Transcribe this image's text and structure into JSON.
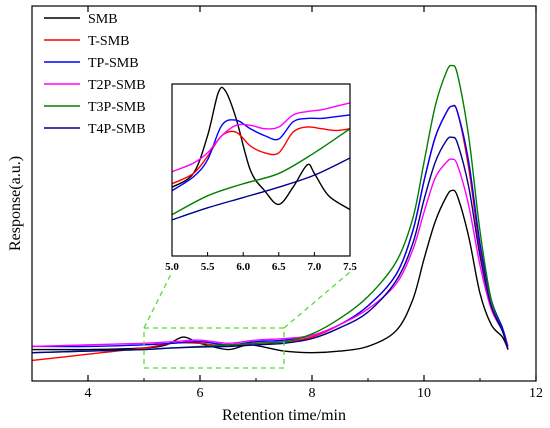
{
  "chart_data": {
    "type": "line",
    "title": "",
    "xlabel": "Retention time/min",
    "ylabel": "Response(a.u.)",
    "xlim": [
      3,
      12
    ],
    "ylim": [
      0,
      100
    ],
    "xticks": [
      4,
      6,
      8,
      10,
      12
    ],
    "y_tick_labels": false,
    "grid": false,
    "legend_position": "top-left",
    "zoom_box_x": [
      5.0,
      7.5
    ],
    "series": [
      {
        "name": "SMB",
        "color": "#000000",
        "x": [
          3.0,
          4.0,
          5.0,
          5.4,
          5.7,
          6.0,
          6.5,
          6.9,
          7.5,
          8.0,
          8.5,
          9.0,
          9.5,
          9.8,
          10.0,
          10.2,
          10.4,
          10.5,
          10.6,
          10.8,
          11.0,
          11.2,
          11.4,
          11.5
        ],
        "y": [
          4.0,
          4.0,
          4.5,
          5.5,
          8.0,
          6.0,
          4.0,
          5.5,
          3.5,
          3.0,
          3.5,
          5.0,
          10.0,
          20.0,
          33.0,
          45.0,
          53.0,
          55.0,
          53.0,
          40.0,
          22.0,
          12.0,
          8.0,
          4.0
        ]
      },
      {
        "name": "T-SMB",
        "color": "#ff0000",
        "x": [
          3.0,
          4.0,
          5.0,
          5.5,
          6.0,
          6.5,
          7.0,
          7.5,
          8.0,
          8.5,
          9.0,
          9.5,
          9.8,
          10.0,
          10.2,
          10.4,
          10.5,
          10.6,
          10.8,
          11.0,
          11.2,
          11.4,
          11.5
        ],
        "y": [
          0.5,
          2.5,
          4.5,
          6.0,
          6.0,
          5.0,
          6.0,
          6.5,
          8.0,
          12.0,
          18.0,
          28.0,
          42.0,
          58.0,
          72.0,
          80.0,
          82.0,
          80.0,
          62.0,
          36.0,
          18.0,
          10.0,
          4.0
        ]
      },
      {
        "name": "TP-SMB",
        "color": "#0000ff",
        "x": [
          3.0,
          4.0,
          5.0,
          5.5,
          6.0,
          6.5,
          7.0,
          7.5,
          8.0,
          8.5,
          9.0,
          9.5,
          9.8,
          10.0,
          10.2,
          10.4,
          10.5,
          10.6,
          10.8,
          11.0,
          11.2,
          11.4,
          11.5
        ],
        "y": [
          5.0,
          5.0,
          5.5,
          6.0,
          6.5,
          5.5,
          6.5,
          7.0,
          8.5,
          12.0,
          18.0,
          28.0,
          42.0,
          58.0,
          72.0,
          80.0,
          82.0,
          80.0,
          64.0,
          38.0,
          20.0,
          11.0,
          5.0
        ]
      },
      {
        "name": "T2P-SMB",
        "color": "#ff00ff",
        "x": [
          3.0,
          4.0,
          5.0,
          5.5,
          6.0,
          6.5,
          7.0,
          7.5,
          8.0,
          8.5,
          9.0,
          9.5,
          9.8,
          10.0,
          10.2,
          10.4,
          10.5,
          10.6,
          10.8,
          11.0,
          11.2,
          11.4,
          11.5
        ],
        "y": [
          5.0,
          5.5,
          6.0,
          6.5,
          7.0,
          6.0,
          7.0,
          7.5,
          8.5,
          12.0,
          17.0,
          25.0,
          36.0,
          48.0,
          59.0,
          64.0,
          65.0,
          63.0,
          50.0,
          31.0,
          17.0,
          10.0,
          5.0
        ]
      },
      {
        "name": "T3P-SMB",
        "color": "#008000",
        "x": [
          3.0,
          4.0,
          5.0,
          5.5,
          6.0,
          6.5,
          7.0,
          7.5,
          8.0,
          8.5,
          9.0,
          9.5,
          9.8,
          10.0,
          10.2,
          10.4,
          10.5,
          10.6,
          10.8,
          11.0,
          11.2,
          11.4,
          11.5
        ],
        "y": [
          3.0,
          3.5,
          4.0,
          4.5,
          5.0,
          5.5,
          6.0,
          6.5,
          9.0,
          14.0,
          21.0,
          32.0,
          46.0,
          64.0,
          82.0,
          93.0,
          95.0,
          92.0,
          72.0,
          42.0,
          20.0,
          10.0,
          4.0
        ]
      },
      {
        "name": "T4P-SMB",
        "color": "#00008b",
        "x": [
          3.0,
          4.0,
          5.0,
          5.5,
          6.0,
          6.5,
          7.0,
          7.5,
          8.0,
          8.5,
          9.0,
          9.5,
          9.8,
          10.0,
          10.2,
          10.4,
          10.5,
          10.6,
          10.8,
          11.0,
          11.2,
          11.4,
          11.5
        ],
        "y": [
          3.0,
          3.5,
          4.0,
          4.5,
          4.8,
          5.0,
          5.5,
          6.0,
          7.5,
          11.0,
          16.0,
          26.0,
          38.0,
          52.0,
          64.0,
          71.0,
          72.0,
          70.0,
          56.0,
          34.0,
          18.0,
          10.0,
          4.0
        ]
      }
    ],
    "inset": {
      "xlim": [
        5.0,
        7.5
      ],
      "ylim": [
        0,
        100
      ],
      "xticks": [
        5.0,
        5.5,
        6.0,
        6.5,
        7.0,
        7.5
      ],
      "xtick_labels": [
        "5.0",
        "5.5",
        "6.0",
        "6.5",
        "7.0",
        "7.5"
      ],
      "series": [
        {
          "name": "SMB",
          "color": "#000000",
          "x": [
            5.0,
            5.3,
            5.5,
            5.65,
            5.75,
            5.9,
            6.1,
            6.3,
            6.5,
            6.7,
            6.9,
            7.0,
            7.2,
            7.5
          ],
          "y": [
            40,
            48,
            70,
            95,
            96,
            80,
            50,
            38,
            30,
            40,
            53,
            48,
            35,
            27
          ]
        },
        {
          "name": "T-SMB",
          "color": "#ff0000",
          "x": [
            5.0,
            5.3,
            5.5,
            5.7,
            5.9,
            6.1,
            6.3,
            6.5,
            6.7,
            6.9,
            7.1,
            7.3,
            7.5
          ],
          "y": [
            42,
            48,
            58,
            70,
            72,
            64,
            60,
            60,
            72,
            75,
            74,
            73,
            74
          ]
        },
        {
          "name": "TP-SMB",
          "color": "#0000ff",
          "x": [
            5.0,
            5.3,
            5.5,
            5.7,
            5.9,
            6.1,
            6.3,
            6.5,
            6.7,
            6.9,
            7.1,
            7.3,
            7.5
          ],
          "y": [
            38,
            46,
            56,
            76,
            79,
            74,
            70,
            68,
            78,
            80,
            80,
            81,
            82
          ]
        },
        {
          "name": "T2P-SMB",
          "color": "#ff00ff",
          "x": [
            5.0,
            5.3,
            5.5,
            5.7,
            5.9,
            6.1,
            6.3,
            6.5,
            6.7,
            6.9,
            7.1,
            7.3,
            7.5
          ],
          "y": [
            49,
            54,
            60,
            70,
            76,
            76,
            74,
            75,
            82,
            84,
            85,
            87,
            89
          ]
        },
        {
          "name": "T3P-SMB",
          "color": "#008000",
          "x": [
            5.0,
            5.5,
            6.0,
            6.5,
            7.0,
            7.5
          ],
          "y": [
            24,
            35,
            42,
            48,
            60,
            74
          ]
        },
        {
          "name": "T4P-SMB",
          "color": "#00008b",
          "x": [
            5.0,
            5.5,
            6.0,
            6.5,
            7.0,
            7.5
          ],
          "y": [
            21,
            28,
            34,
            40,
            47,
            57
          ]
        }
      ]
    }
  }
}
